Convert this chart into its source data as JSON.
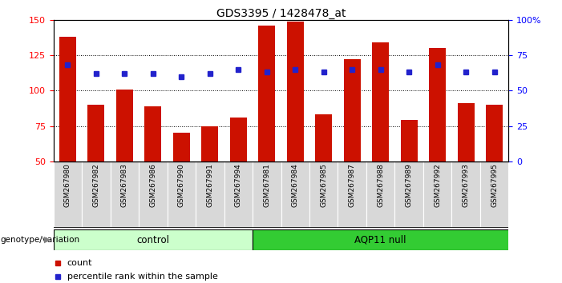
{
  "title": "GDS3395 / 1428478_at",
  "samples": [
    "GSM267980",
    "GSM267982",
    "GSM267983",
    "GSM267986",
    "GSM267990",
    "GSM267991",
    "GSM267994",
    "GSM267981",
    "GSM267984",
    "GSM267985",
    "GSM267987",
    "GSM267988",
    "GSM267989",
    "GSM267992",
    "GSM267993",
    "GSM267995"
  ],
  "counts": [
    138,
    90,
    101,
    89,
    70,
    75,
    81,
    146,
    149,
    83,
    122,
    134,
    79,
    130,
    91,
    90
  ],
  "percentile": [
    68,
    62,
    62,
    62,
    60,
    62,
    65,
    63,
    65,
    63,
    65,
    65,
    63,
    68,
    63,
    63
  ],
  "n_control": 7,
  "ylim_left": [
    50,
    150
  ],
  "ylim_right": [
    0,
    100
  ],
  "bar_color": "#CC1100",
  "dot_color": "#2222CC",
  "control_color": "#CCFFCC",
  "aqp11_color": "#33CC33",
  "label_bar": "count",
  "label_dot": "percentile rank within the sample",
  "group_label": "genotype/variation"
}
